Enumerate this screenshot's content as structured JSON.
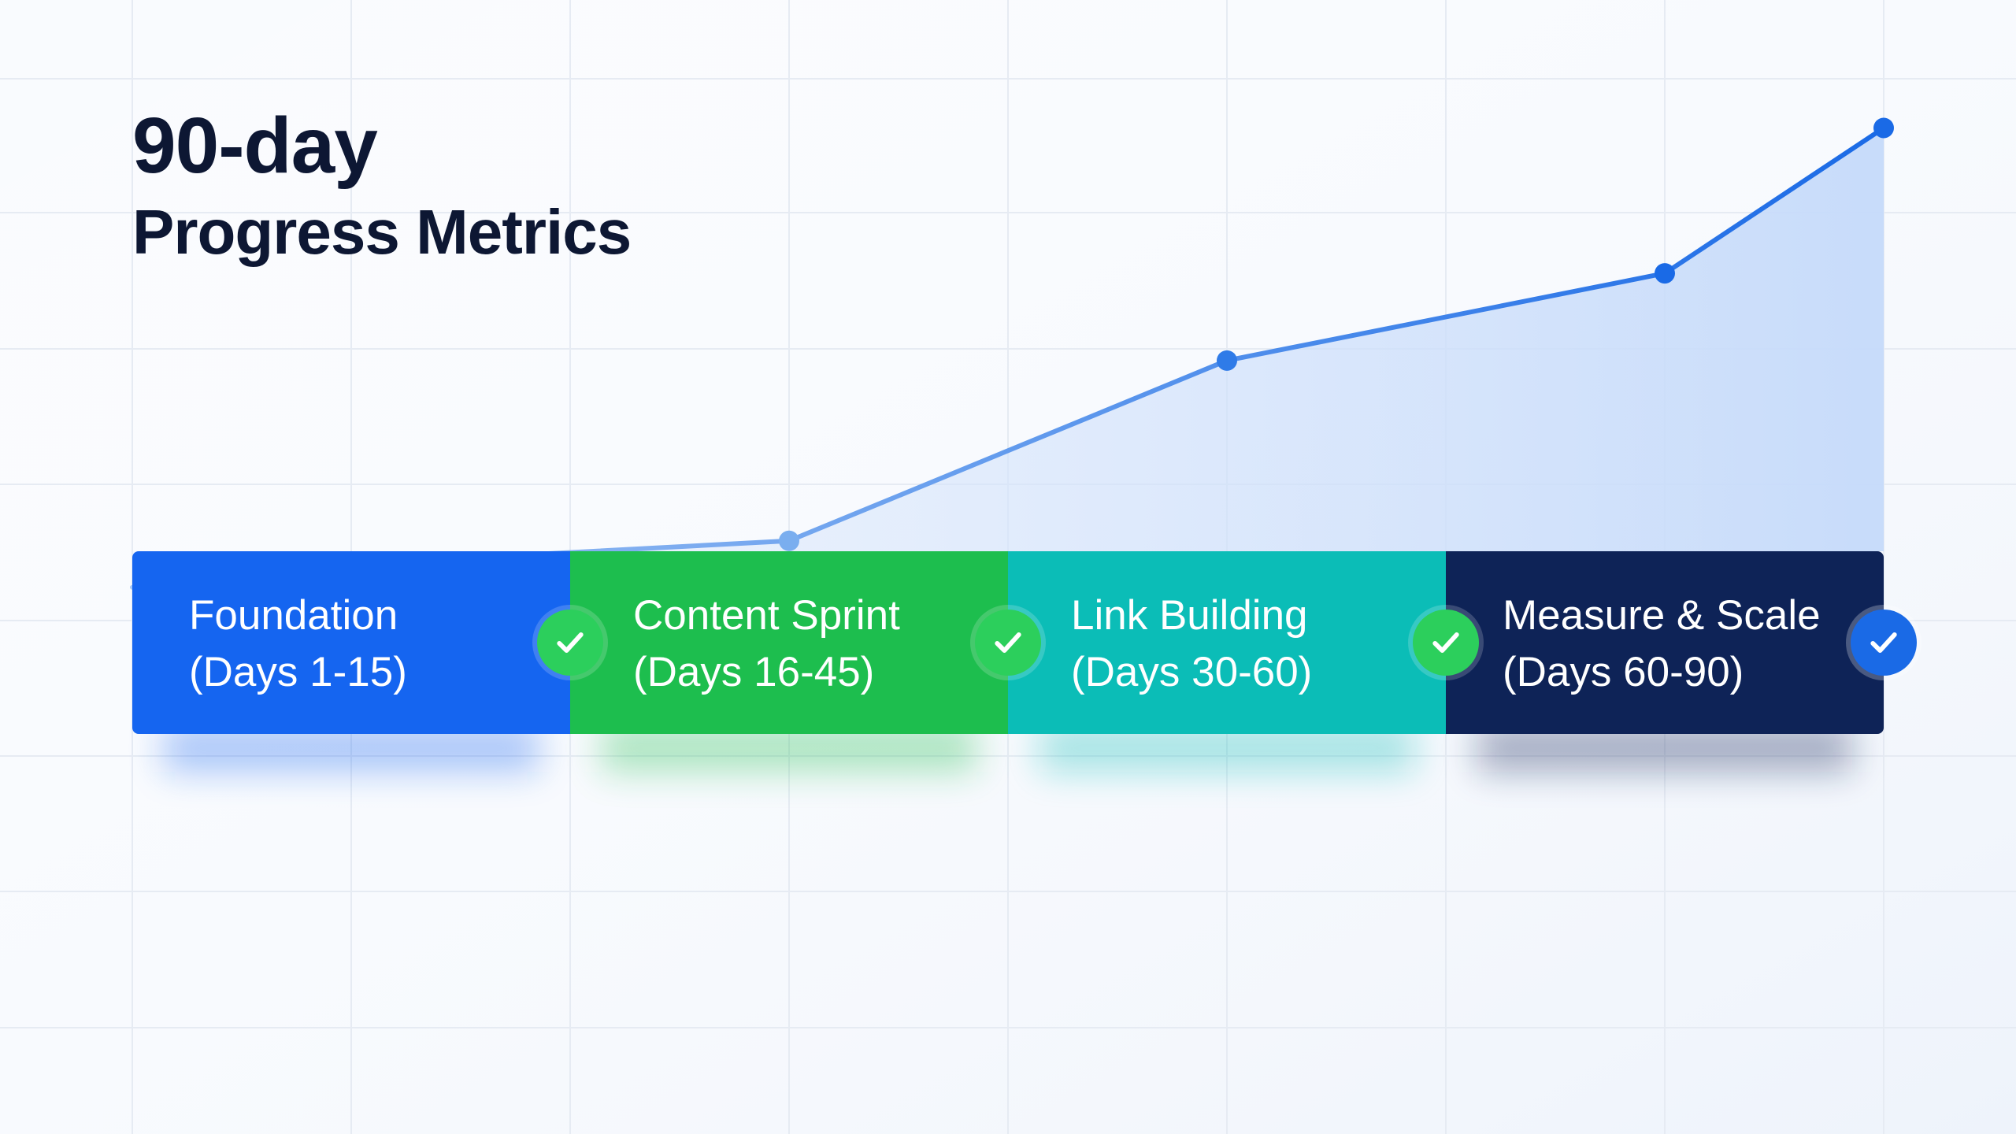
{
  "title": {
    "line1": "90-day",
    "line2": "Progress Metrics"
  },
  "chart_data": {
    "type": "area",
    "x_days": [
      0,
      15,
      45,
      75,
      105,
      120
    ],
    "values": [
      0.14,
      0.18,
      0.22,
      0.53,
      0.68,
      0.93
    ],
    "marked_points": [
      15,
      45,
      75,
      105,
      120
    ],
    "ylim": [
      -0.8,
      1.15
    ],
    "xlim": [
      0,
      120
    ],
    "line_color": "#1a6ae6",
    "fill_color": "#cfe0fb",
    "grid": true
  },
  "phases": [
    {
      "name": "Foundation",
      "days": "(Days 1-15)",
      "color": "#1565f0",
      "check_color": "#2ccf5c",
      "status": "completed"
    },
    {
      "name": "Content Sprint",
      "days": "(Days 16-45)",
      "color": "#1dbe4e",
      "check_color": "#2ccf5c",
      "status": "completed"
    },
    {
      "name": "Link Building",
      "days": "(Days 30-60)",
      "color": "#0bbdb7",
      "check_color": "#2ccf5c",
      "status": "completed"
    },
    {
      "name": "Measure & Scale",
      "days": "(Days 60-90)",
      "color": "#0e2357",
      "check_color": "#1a6ae6",
      "status": "completed"
    }
  ]
}
